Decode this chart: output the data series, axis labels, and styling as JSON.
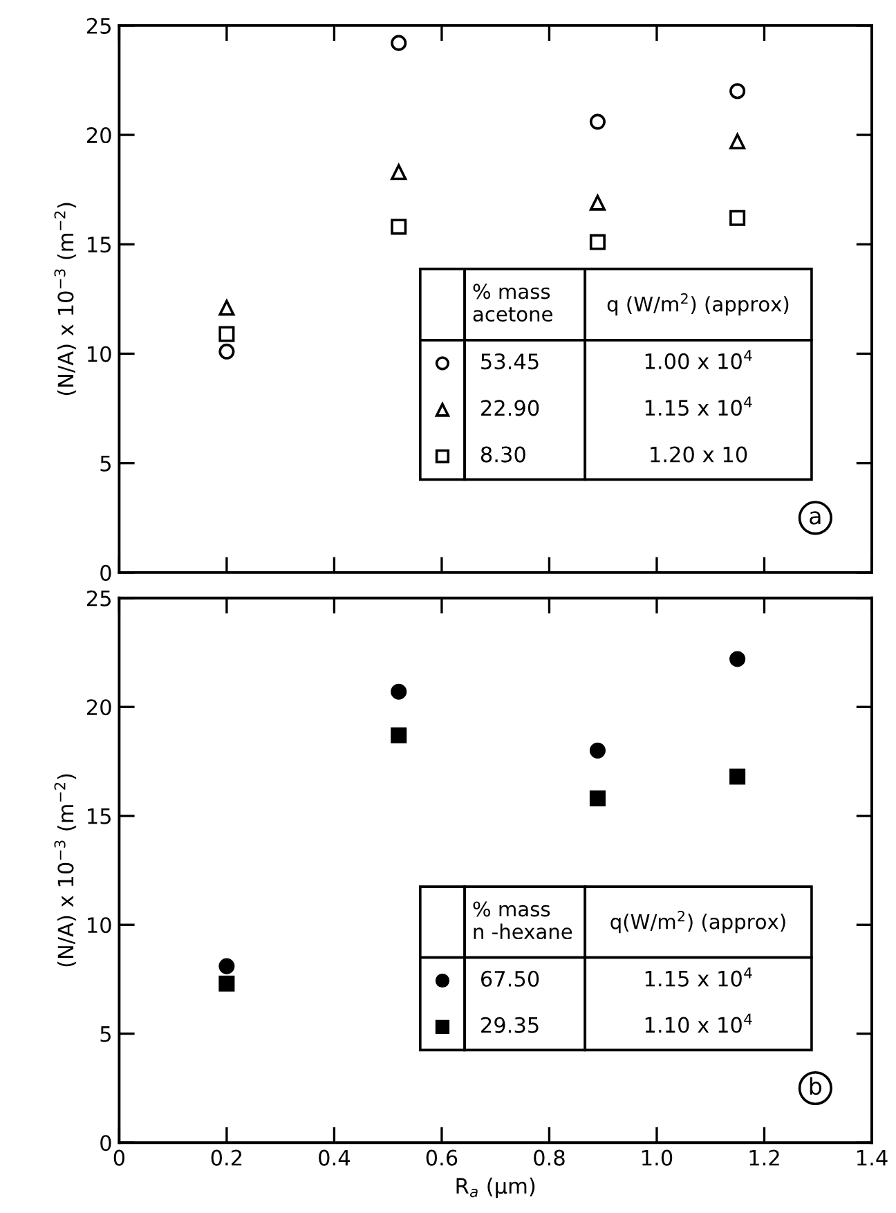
{
  "chart_data": [
    {
      "type": "scatter",
      "ylabel": "(N/A) x 10$^{−3}$ (m$^{−2}$)",
      "xlim": [
        0,
        1.4
      ],
      "xticks": [
        0,
        0.2,
        0.4,
        0.6,
        0.8,
        1.0,
        1.2,
        1.4
      ],
      "ylim": [
        0,
        25
      ],
      "yticks": [
        0,
        5,
        10,
        15,
        20,
        25
      ],
      "tick_labels": "y",
      "legend": "bottom right",
      "legend_title": "% mass\nacetone",
      "series": [
        {
          "name": "53.45",
          "color": "#ffffff",
          "marker": "circle",
          "x": [
            0.2,
            0.52,
            0.89,
            1.15
          ],
          "values": [
            10.1,
            24.2,
            20.6,
            22.0
          ]
        },
        {
          "name": "22.90",
          "color": "#ffffff",
          "marker": "triangle",
          "x": [
            0.2,
            0.52,
            0.89,
            1.15
          ],
          "values": [
            12.1,
            18.3,
            16.9,
            19.7
          ]
        },
        {
          "name": "8.30",
          "color": "#ffffff",
          "marker": "square",
          "x": [
            0.2,
            0.52,
            0.89,
            1.15
          ],
          "values": [
            10.9,
            15.8,
            15.1,
            16.2
          ]
        }
      ],
      "annotations": [
        "q (W/m$^{2}$) (approx)",
        "1.00 x 10$^{4}$",
        "1.15 x 10$^{4}$",
        "1.20 x 10",
        "a"
      ]
    },
    {
      "type": "scatter",
      "xlabel": "R$_{a}$ (μm)",
      "ylabel": "(N/A) x 10$^{−3}$ (m$^{−2}$)",
      "xlim": [
        0,
        1.4
      ],
      "xticks": [
        0,
        0.2,
        0.4,
        0.6,
        0.8,
        {
          "value": 1,
          "label": "1.0"
        },
        1.2,
        1.4
      ],
      "ylim": [
        0,
        25
      ],
      "yticks": [
        0,
        5,
        10,
        15,
        20,
        25
      ],
      "legend": "bottom right",
      "legend_title": "% mass\nn -hexane",
      "series": [
        {
          "name": "67.50",
          "color": "#000000",
          "marker": "circle",
          "x": [
            0.2,
            0.52,
            0.89,
            1.15
          ],
          "values": [
            8.1,
            20.7,
            18.0,
            22.2
          ]
        },
        {
          "name": "29.35",
          "color": "#000000",
          "marker": "square",
          "x": [
            0.2,
            0.52,
            0.89,
            1.15
          ],
          "values": [
            7.3,
            18.7,
            15.8,
            16.8
          ]
        }
      ],
      "annotations": [
        "q(W/m$^{2}$) (approx)",
        "1.15 x 10$^{4}$",
        "1.10 x 10$^{4}$",
        "b"
      ]
    }
  ]
}
